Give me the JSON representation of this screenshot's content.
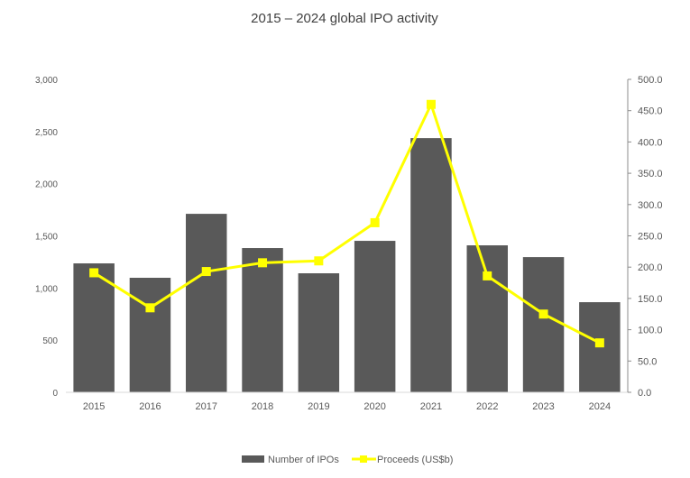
{
  "chart_data": {
    "type": "bar+line",
    "title": "2015 – 2024 global IPO activity",
    "categories": [
      "2015",
      "2016",
      "2017",
      "2018",
      "2019",
      "2020",
      "2021",
      "2022",
      "2023",
      "2024"
    ],
    "series": [
      {
        "name": "Number of IPOs",
        "type": "bar",
        "axis": "left",
        "color": "#595959",
        "values": [
          1236,
          1098,
          1711,
          1383,
          1141,
          1452,
          2437,
          1409,
          1296,
          864
        ]
      },
      {
        "name": "Proceeds (US$b)",
        "type": "line",
        "axis": "right",
        "color": "#FFFF00",
        "values": [
          191,
          135,
          193,
          207,
          210,
          271,
          460,
          186,
          125,
          79
        ]
      }
    ],
    "left_axis": {
      "range": [
        0,
        3000
      ],
      "ticks": [
        "0",
        "500",
        "1,000",
        "1,500",
        "2,000",
        "2,500",
        "3,000"
      ]
    },
    "right_axis": {
      "range": [
        0,
        500
      ],
      "ticks": [
        "0.0",
        "50.0",
        "100.0",
        "150.0",
        "200.0",
        "250.0",
        "300.0",
        "350.0",
        "400.0",
        "450.0",
        "500.0"
      ]
    },
    "grid": false,
    "legend": "bottom"
  }
}
